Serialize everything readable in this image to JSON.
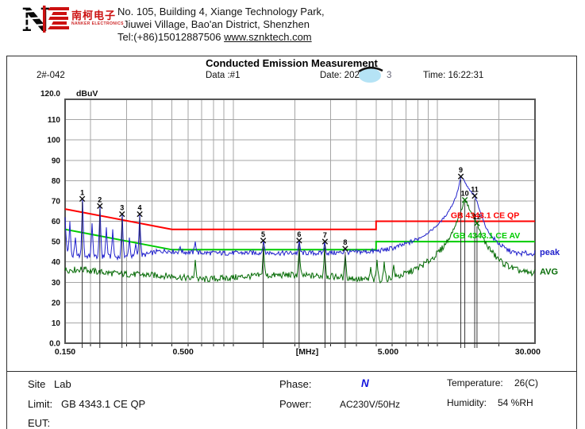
{
  "header": {
    "logo_chinese": "南柯电子",
    "logo_english": "NANKER ELECTRONICS",
    "address_line1": "No. 105, Building 4, Xiange Technology Park,",
    "address_line2": "Jiuwei Village, Bao'an District, Shenzhen",
    "tel": "Tel:(+86)15012887506",
    "website": "www.sznktech.com"
  },
  "chart_header": {
    "title": "Conducted Emission Measurement",
    "sample_id": "2#-042",
    "data_label": "Data :#1",
    "date_prefix": "Date: 202",
    "date_suffix": "3",
    "time_label": "Time: 16:22:31"
  },
  "chart_data": {
    "type": "line",
    "title": "Conducted Emission Measurement",
    "y_axis": {
      "unit": "dBuV",
      "min": 0,
      "max": 120,
      "step": 10,
      "top_label": "120.0",
      "bottom_label": "0.0"
    },
    "x_axis": {
      "scale": "log",
      "min": 0.15,
      "max": 30,
      "unit": "[MHz]",
      "gridlines": [
        0.2,
        0.3,
        0.4,
        0.5,
        0.6,
        0.7,
        0.8,
        0.9,
        1,
        2,
        3,
        4,
        5,
        6,
        7,
        8,
        9,
        10,
        20
      ],
      "tick_labels": [
        {
          "f": 0.15,
          "text": "0.150",
          "anchor": "middle",
          "dx": 0
        },
        {
          "f": 0.5,
          "text": "0.500",
          "anchor": "start",
          "dx": 1
        },
        {
          "f": 2.3,
          "text": "[MHz]",
          "anchor": "middle",
          "dx": 0
        },
        {
          "f": 5.0,
          "text": "5.000",
          "anchor": "start",
          "dx": 2
        },
        {
          "f": 30,
          "text": "30.000",
          "anchor": "end",
          "dx": 7
        }
      ]
    },
    "limits": [
      {
        "name": "GB 4343.1 CE QP",
        "color": "#ff0000",
        "label_f": 11.6,
        "points": [
          [
            0.15,
            66
          ],
          [
            0.5,
            56
          ],
          [
            5,
            56
          ],
          [
            5,
            60
          ],
          [
            30,
            60
          ]
        ]
      },
      {
        "name": "GB 4343.1 CE AV",
        "color": "#00cc00",
        "label_f": 11.9,
        "points": [
          [
            0.15,
            56
          ],
          [
            0.5,
            46
          ],
          [
            5,
            46
          ],
          [
            5,
            50
          ],
          [
            30,
            50
          ]
        ]
      }
    ],
    "series": [
      {
        "name": "peak",
        "label": "peak",
        "color": "#2222cc",
        "noise": 1.2,
        "seed": 7,
        "label_v": 44.5,
        "anchors": [
          [
            0.15,
            62
          ],
          [
            0.152,
            50
          ],
          [
            0.156,
            43
          ],
          [
            0.19,
            42.8
          ],
          [
            0.23,
            42.6
          ],
          [
            0.28,
            42.4
          ],
          [
            0.33,
            42.6
          ],
          [
            0.37,
            43.5
          ],
          [
            0.42,
            45
          ],
          [
            0.47,
            45.5
          ],
          [
            0.52,
            45
          ],
          [
            0.58,
            44.8
          ],
          [
            0.65,
            44.6
          ],
          [
            0.75,
            44.4
          ],
          [
            0.9,
            44.3
          ],
          [
            1.1,
            44.4
          ],
          [
            1.4,
            44.5
          ],
          [
            1.8,
            44.3
          ],
          [
            2.2,
            44.4
          ],
          [
            2.7,
            44.3
          ],
          [
            3.2,
            44.5
          ],
          [
            3.8,
            44.8
          ],
          [
            4.4,
            45
          ],
          [
            5,
            45.3
          ],
          [
            5.6,
            46
          ],
          [
            6.3,
            47.3
          ],
          [
            7,
            48.8
          ],
          [
            7.8,
            50.8
          ],
          [
            8.6,
            53
          ],
          [
            9.4,
            55.8
          ],
          [
            10.2,
            59
          ],
          [
            11,
            63
          ],
          [
            11.8,
            68
          ],
          [
            12.4,
            73
          ],
          [
            12.8,
            78.5
          ],
          [
            13,
            82
          ],
          [
            13.3,
            81
          ],
          [
            13.8,
            78
          ],
          [
            14.4,
            75
          ],
          [
            15.2,
            72.5
          ],
          [
            15.8,
            68
          ],
          [
            16.4,
            63
          ],
          [
            17,
            58.5
          ],
          [
            17.8,
            54.5
          ],
          [
            18.6,
            52
          ],
          [
            19.5,
            50
          ],
          [
            20.5,
            48
          ],
          [
            21.5,
            46.5
          ],
          [
            23,
            45
          ],
          [
            25,
            44
          ],
          [
            27,
            44.3
          ],
          [
            28.5,
            43.8
          ],
          [
            30,
            44.5
          ]
        ],
        "spikes": [
          [
            0.158,
            60
          ],
          [
            0.168,
            52
          ],
          [
            0.182,
            71
          ],
          [
            0.203,
            59
          ],
          [
            0.222,
            67.5
          ],
          [
            0.2395,
            57
          ],
          [
            0.257,
            56
          ],
          [
            0.285,
            63.5
          ],
          [
            0.31,
            52
          ],
          [
            0.332,
            49
          ],
          [
            0.348,
            63.5
          ],
          [
            0.55,
            47.5
          ],
          [
            0.65,
            50
          ],
          [
            1.4,
            50.5
          ],
          [
            2.1,
            50.5
          ],
          [
            2.81,
            50
          ],
          [
            3.53,
            46.5
          ]
        ]
      },
      {
        "name": "AVG",
        "label": "AVG",
        "color": "#056b05",
        "noise": 1.6,
        "seed": 131,
        "label_v": 35,
        "anchors": [
          [
            0.15,
            36
          ],
          [
            0.18,
            36.3
          ],
          [
            0.22,
            35
          ],
          [
            0.27,
            34.2
          ],
          [
            0.33,
            33.8
          ],
          [
            0.4,
            33.5
          ],
          [
            0.5,
            33
          ],
          [
            0.6,
            32
          ],
          [
            0.7,
            31.3
          ],
          [
            0.85,
            31.8
          ],
          [
            1,
            32.3
          ],
          [
            1.2,
            33
          ],
          [
            1.5,
            33.3
          ],
          [
            1.9,
            33.6
          ],
          [
            2.3,
            33.2
          ],
          [
            2.8,
            33
          ],
          [
            3.3,
            32.6
          ],
          [
            3.8,
            32
          ],
          [
            4.3,
            31.4
          ],
          [
            4.8,
            31
          ],
          [
            5.3,
            31.3
          ],
          [
            5.9,
            32
          ],
          [
            6.5,
            33
          ],
          [
            7.2,
            34.8
          ],
          [
            8,
            37
          ],
          [
            8.8,
            39.5
          ],
          [
            9.6,
            42.5
          ],
          [
            10.4,
            46
          ],
          [
            11.2,
            50.5
          ],
          [
            12,
            56
          ],
          [
            12.8,
            63
          ],
          [
            13.3,
            67.5
          ],
          [
            13.6,
            70.5
          ],
          [
            13.9,
            69
          ],
          [
            14.5,
            65
          ],
          [
            15.1,
            61.5
          ],
          [
            15.6,
            59
          ],
          [
            16.2,
            54.5
          ],
          [
            16.8,
            51
          ],
          [
            17.5,
            48
          ],
          [
            18.5,
            44.8
          ],
          [
            19.5,
            42
          ],
          [
            21,
            39.3
          ],
          [
            22.5,
            37.8
          ],
          [
            24,
            36.3
          ],
          [
            26,
            35.2
          ],
          [
            28,
            34.5
          ],
          [
            30,
            34.6
          ]
        ],
        "spikes": [
          [
            0.19,
            37.5
          ],
          [
            0.65,
            41
          ],
          [
            1.4,
            47.5
          ],
          [
            2.1,
            47.5
          ],
          [
            2.81,
            47
          ],
          [
            3.53,
            43.5
          ],
          [
            4.7,
            37.5
          ],
          [
            5.05,
            41
          ],
          [
            5.5,
            40.2
          ],
          [
            6.1,
            38.5
          ]
        ]
      }
    ],
    "markers": [
      {
        "n": "1",
        "f": 0.182,
        "v": 71,
        "series": "peak"
      },
      {
        "n": "2",
        "f": 0.222,
        "v": 67.5,
        "series": "peak"
      },
      {
        "n": "3",
        "f": 0.285,
        "v": 63.5,
        "series": "peak"
      },
      {
        "n": "4",
        "f": 0.348,
        "v": 63.5,
        "series": "peak"
      },
      {
        "n": "5",
        "f": 1.4,
        "v": 50.5,
        "series": "peak"
      },
      {
        "n": "6",
        "f": 2.1,
        "v": 50.5,
        "series": "peak"
      },
      {
        "n": "7",
        "f": 2.81,
        "v": 50,
        "series": "peak"
      },
      {
        "n": "8",
        "f": 3.53,
        "v": 46.5,
        "series": "peak"
      },
      {
        "n": "9",
        "f": 13,
        "v": 82,
        "series": "peak"
      },
      {
        "n": "10",
        "f": 13.6,
        "v": 70.5,
        "series": "AVG"
      },
      {
        "n": "11",
        "f": 15.2,
        "v": 72.5,
        "series": "peak"
      },
      {
        "n": "12",
        "f": 15.6,
        "v": 59,
        "series": "AVG"
      }
    ],
    "colors": {
      "grid": "#a5a5a5",
      "plot_border": "#555555",
      "marker_line": "#222222"
    }
  },
  "footer": {
    "site_label": "Site",
    "site_value": "Lab",
    "limit_label": "Limit:",
    "limit_value": "GB 4343.1 CE QP",
    "eut_label": "EUT:",
    "phase_label": "Phase:",
    "phase_value": "N",
    "power_label": "Power:",
    "power_value": "AC230V/50Hz",
    "temperature_label": "Temperature:",
    "temperature_value": "26(C)",
    "humidity_label": "Humidity:",
    "humidity_value": "54 %RH"
  }
}
